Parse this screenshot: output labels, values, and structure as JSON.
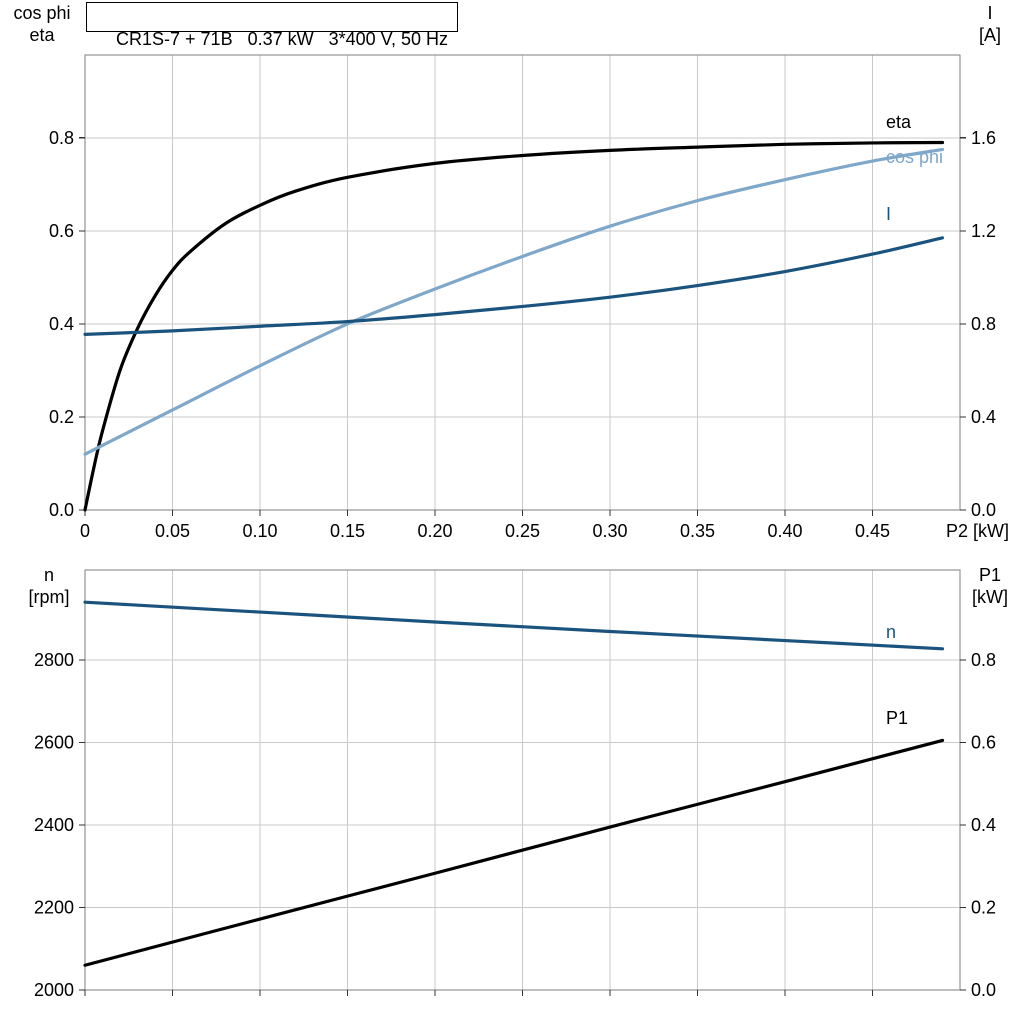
{
  "title_box": {
    "text": "CR1S-7 + 71B   0.37 kW   3*400 V, 50 Hz"
  },
  "colors": {
    "black": "#000000",
    "light_blue": "#7ea7c9",
    "dark_blue": "#1a547e",
    "grid": "#c9c9c9",
    "frame": "#7f7f7f",
    "tick": "#333333"
  },
  "chart_data": [
    {
      "type": "line",
      "title": "CR1S-7 + 71B   0.37 kW   3*400 V, 50 Hz",
      "grid": true,
      "legend_position": "right-of-curve-ends",
      "x_axis": {
        "label": "P2 [kW]",
        "min": 0,
        "max": 0.5,
        "ticks": [
          0,
          0.05,
          0.1,
          0.15,
          0.2,
          0.25,
          0.3,
          0.35,
          0.4,
          0.45
        ],
        "tick_labels": [
          "0",
          "0.05",
          "0.10",
          "0.15",
          "0.20",
          "0.25",
          "0.30",
          "0.35",
          "0.40",
          "0.45"
        ]
      },
      "left_axis": {
        "title_lines": [
          "cos phi",
          "eta"
        ],
        "min": 0,
        "max": 0.978,
        "ticks": [
          0,
          0.2,
          0.4,
          0.6,
          0.8
        ],
        "tick_labels": [
          "0.0",
          "0.2",
          "0.4",
          "0.6",
          "0.8"
        ]
      },
      "right_axis": {
        "title_lines": [
          "I",
          "[A]"
        ],
        "min": 0,
        "max": 1.956,
        "ticks": [
          0,
          0.4,
          0.8,
          1.2,
          1.6
        ],
        "tick_labels": [
          "0.0",
          "0.4",
          "0.8",
          "1.2",
          "1.6"
        ]
      },
      "series": [
        {
          "name": "eta",
          "axis": "left",
          "color": "#000000",
          "x": [
            0,
            0.005,
            0.01,
            0.02,
            0.03,
            0.04,
            0.05,
            0.06,
            0.08,
            0.1,
            0.12,
            0.15,
            0.2,
            0.25,
            0.3,
            0.35,
            0.4,
            0.45,
            0.49
          ],
          "y": [
            0,
            0.09,
            0.17,
            0.3,
            0.39,
            0.46,
            0.515,
            0.555,
            0.615,
            0.655,
            0.685,
            0.715,
            0.745,
            0.762,
            0.773,
            0.78,
            0.786,
            0.789,
            0.79
          ]
        },
        {
          "name": "cos phi",
          "axis": "left",
          "color": "#7ea7c9",
          "x": [
            0,
            0.05,
            0.1,
            0.15,
            0.2,
            0.25,
            0.3,
            0.35,
            0.4,
            0.45,
            0.49
          ],
          "y": [
            0.12,
            0.215,
            0.31,
            0.4,
            0.475,
            0.545,
            0.61,
            0.665,
            0.71,
            0.75,
            0.775
          ]
        },
        {
          "name": "I",
          "axis": "right",
          "color": "#1a547e",
          "x": [
            0,
            0.05,
            0.1,
            0.15,
            0.2,
            0.25,
            0.3,
            0.35,
            0.4,
            0.45,
            0.49
          ],
          "y": [
            0.755,
            0.77,
            0.79,
            0.81,
            0.84,
            0.875,
            0.915,
            0.965,
            1.025,
            1.1,
            1.17
          ]
        }
      ]
    },
    {
      "type": "line",
      "title": "",
      "grid": true,
      "x_axis": {
        "label": "",
        "min": 0,
        "max": 0.5,
        "ticks": [
          0,
          0.05,
          0.1,
          0.15,
          0.2,
          0.25,
          0.3,
          0.35,
          0.4,
          0.45
        ],
        "tick_labels": []
      },
      "left_axis": {
        "title_lines": [
          "n",
          "[rpm]"
        ],
        "min": 2000,
        "max": 3018,
        "ticks": [
          2000,
          2200,
          2400,
          2600,
          2800
        ],
        "tick_labels": [
          "2000",
          "2200",
          "2400",
          "2600",
          "2800"
        ]
      },
      "right_axis": {
        "title_lines": [
          "P1",
          "[kW]"
        ],
        "min": 0,
        "max": 1.018,
        "ticks": [
          0,
          0.2,
          0.4,
          0.6,
          0.8
        ],
        "tick_labels": [
          "0.0",
          "0.2",
          "0.4",
          "0.6",
          "0.8"
        ]
      },
      "series": [
        {
          "name": "n",
          "axis": "left",
          "color": "#1a547e",
          "x": [
            0,
            0.1,
            0.2,
            0.3,
            0.4,
            0.49
          ],
          "y": [
            2940,
            2916,
            2892,
            2869,
            2847,
            2827
          ]
        },
        {
          "name": "P1",
          "axis": "right",
          "color": "#000000",
          "x": [
            0,
            0.1,
            0.2,
            0.3,
            0.4,
            0.49
          ],
          "y": [
            0.06,
            0.172,
            0.283,
            0.395,
            0.505,
            0.605
          ]
        }
      ]
    }
  ]
}
